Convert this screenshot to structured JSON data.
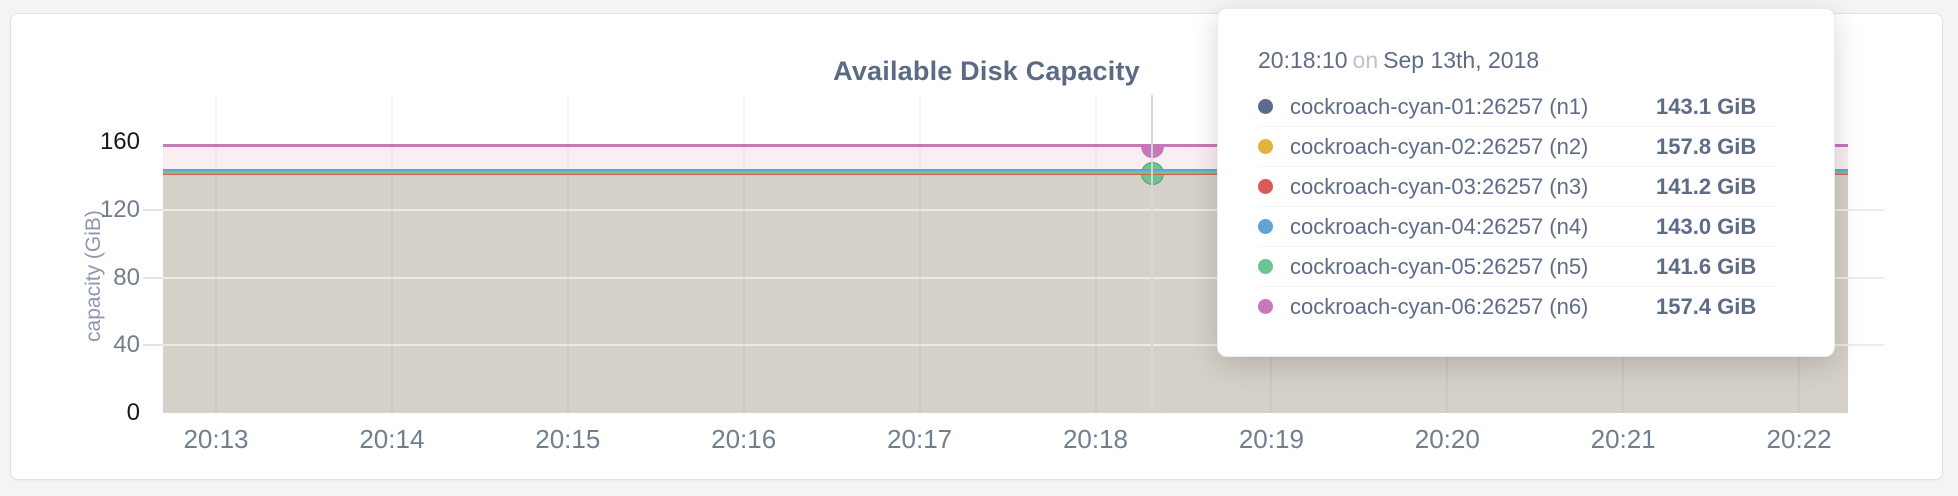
{
  "chart_data": {
    "type": "area",
    "title": "Available Disk Capacity",
    "ylabel": "capacity (GiB)",
    "xlabel": "",
    "ylim": [
      0,
      160
    ],
    "yticks": [
      0,
      40,
      80,
      120,
      160
    ],
    "ytick_emphasized": [
      0,
      160
    ],
    "xticks": [
      "20:13",
      "20:14",
      "20:15",
      "20:16",
      "20:17",
      "20:18",
      "20:19",
      "20:20",
      "20:21",
      "20:22"
    ],
    "grid": true,
    "legend_position": "tooltip",
    "series": [
      {
        "name": "cockroach-cyan-01:26257 (n1)",
        "color": "#5c6c8e",
        "value": 143.1,
        "value_label": "143.1 GiB"
      },
      {
        "name": "cockroach-cyan-02:26257 (n2)",
        "color": "#e2b33c",
        "value": 157.8,
        "value_label": "157.8 GiB"
      },
      {
        "name": "cockroach-cyan-03:26257 (n3)",
        "color": "#da5a58",
        "value": 141.2,
        "value_label": "141.2 GiB"
      },
      {
        "name": "cockroach-cyan-04:26257 (n4)",
        "color": "#62a3d6",
        "value": 143.0,
        "value_label": "143.0 GiB"
      },
      {
        "name": "cockroach-cyan-05:26257 (n5)",
        "color": "#6cc493",
        "value": 141.6,
        "value_label": "141.6 GiB"
      },
      {
        "name": "cockroach-cyan-06:26257 (n6)",
        "color": "#c678bb",
        "value": 157.4,
        "value_label": "157.4 GiB"
      }
    ],
    "fills": {
      "upper_band": "#f9eef1",
      "lower_band": "#d5d1c8"
    },
    "hover": {
      "time_label": "20:18:10",
      "highlighted_series": [
        "cockroach-cyan-06:26257 (n6)",
        "cockroach-cyan-05:26257 (n5)"
      ]
    }
  },
  "tooltip": {
    "time": "20:18:10",
    "separator": "on",
    "date": "Sep 13th, 2018"
  }
}
